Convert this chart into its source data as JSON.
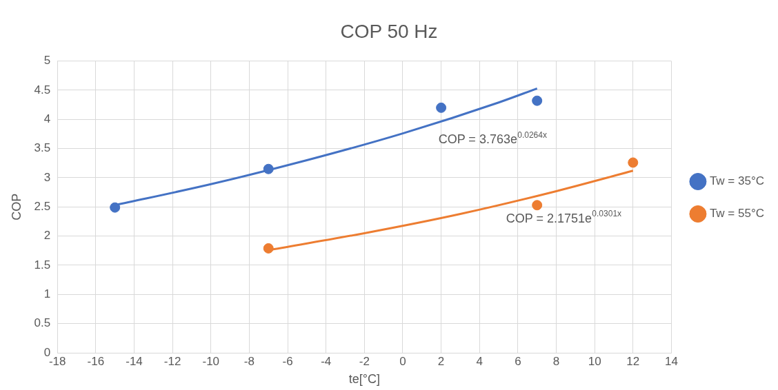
{
  "chart_data": {
    "type": "scatter",
    "title": "COP 50 Hz",
    "xlabel": "te[°C]",
    "ylabel": "COP",
    "xlim": [
      -18,
      14
    ],
    "xticks": [
      -18,
      -16,
      -14,
      -12,
      -10,
      -8,
      -6,
      -4,
      -2,
      0,
      2,
      4,
      6,
      8,
      10,
      12,
      14
    ],
    "ylim": [
      0,
      5
    ],
    "yticks": [
      0,
      0.5,
      1,
      1.5,
      2,
      2.5,
      3,
      3.5,
      4,
      4.5,
      5
    ],
    "grid": true,
    "legend": "right",
    "marker": "circle",
    "series": [
      {
        "name": "Tw = 35°C",
        "color": "#4472c4",
        "x": [
          -15,
          -7,
          2,
          7
        ],
        "values": [
          2.49,
          3.15,
          4.2,
          4.32
        ]
      },
      {
        "name": "Tw = 55°C",
        "color": "#ed7d31",
        "x": [
          -7,
          7,
          12
        ],
        "values": [
          1.79,
          2.53,
          3.26
        ]
      },
      {
        "type": "line",
        "marker": "none",
        "color": "#4472c4",
        "x": [
          -15,
          -10,
          -5,
          0,
          5,
          7
        ],
        "values": [
          2.53,
          2.89,
          3.3,
          3.76,
          4.29,
          4.53
        ]
      },
      {
        "type": "line",
        "marker": "none",
        "color": "#ed7d31",
        "x": [
          -7,
          -2,
          3,
          8,
          12
        ],
        "values": [
          1.76,
          2.05,
          2.38,
          2.77,
          3.12
        ]
      }
    ],
    "annotations": [
      "COP = 3.763e$^{0.0264x}$",
      "COP = 2.1751e$^{0.0301x}$"
    ]
  }
}
